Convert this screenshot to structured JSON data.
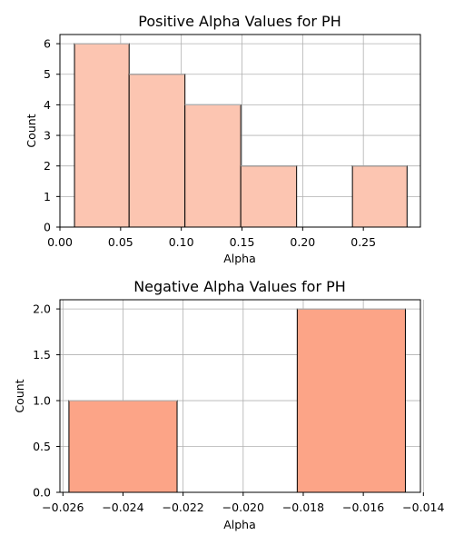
{
  "chart_data": [
    {
      "type": "bar",
      "title": "Positive Alpha Values for PH",
      "xlabel": "Alpha",
      "ylabel": "Count",
      "xlim": [
        0.0,
        0.297
      ],
      "ylim": [
        0,
        6.3
      ],
      "grid": true,
      "bar_color": "#fcc5b1",
      "bins": [
        {
          "x0": 0.012,
          "x1": 0.057,
          "count": 6
        },
        {
          "x0": 0.057,
          "x1": 0.103,
          "count": 5
        },
        {
          "x0": 0.103,
          "x1": 0.149,
          "count": 4
        },
        {
          "x0": 0.149,
          "x1": 0.195,
          "count": 2
        },
        {
          "x0": 0.195,
          "x1": 0.241,
          "count": 0
        },
        {
          "x0": 0.241,
          "x1": 0.286,
          "count": 2
        }
      ],
      "xticks": [
        {
          "v": 0.0,
          "label": "0.00"
        },
        {
          "v": 0.05,
          "label": "0.05"
        },
        {
          "v": 0.1,
          "label": "0.10"
        },
        {
          "v": 0.15,
          "label": "0.15"
        },
        {
          "v": 0.2,
          "label": "0.20"
        },
        {
          "v": 0.25,
          "label": "0.25"
        }
      ],
      "yticks": [
        {
          "v": 0,
          "label": "0"
        },
        {
          "v": 1,
          "label": "1"
        },
        {
          "v": 2,
          "label": "2"
        },
        {
          "v": 3,
          "label": "3"
        },
        {
          "v": 4,
          "label": "4"
        },
        {
          "v": 5,
          "label": "5"
        },
        {
          "v": 6,
          "label": "6"
        }
      ]
    },
    {
      "type": "bar",
      "title": "Negative Alpha Values for PH",
      "xlabel": "Alpha",
      "ylabel": "Count",
      "xlim": [
        -0.0261,
        -0.0141
      ],
      "ylim": [
        0,
        2.1
      ],
      "grid": true,
      "bar_color": "#fca487",
      "bins": [
        {
          "x0": -0.0258,
          "x1": -0.0222,
          "count": 1
        },
        {
          "x0": -0.0222,
          "x1": -0.0182,
          "count": 0
        },
        {
          "x0": -0.0182,
          "x1": -0.0146,
          "count": 2
        }
      ],
      "xticks": [
        {
          "v": -0.026,
          "label": "−0.026"
        },
        {
          "v": -0.024,
          "label": "−0.024"
        },
        {
          "v": -0.022,
          "label": "−0.022"
        },
        {
          "v": -0.02,
          "label": "−0.020"
        },
        {
          "v": -0.018,
          "label": "−0.018"
        },
        {
          "v": -0.016,
          "label": "−0.016"
        },
        {
          "v": -0.014,
          "label": "−0.014"
        }
      ],
      "yticks": [
        {
          "v": 0,
          "label": "0.0"
        },
        {
          "v": 0.5,
          "label": "0.5"
        },
        {
          "v": 1,
          "label": "1.0"
        },
        {
          "v": 1.5,
          "label": "1.5"
        },
        {
          "v": 2,
          "label": "2.0"
        }
      ]
    }
  ]
}
